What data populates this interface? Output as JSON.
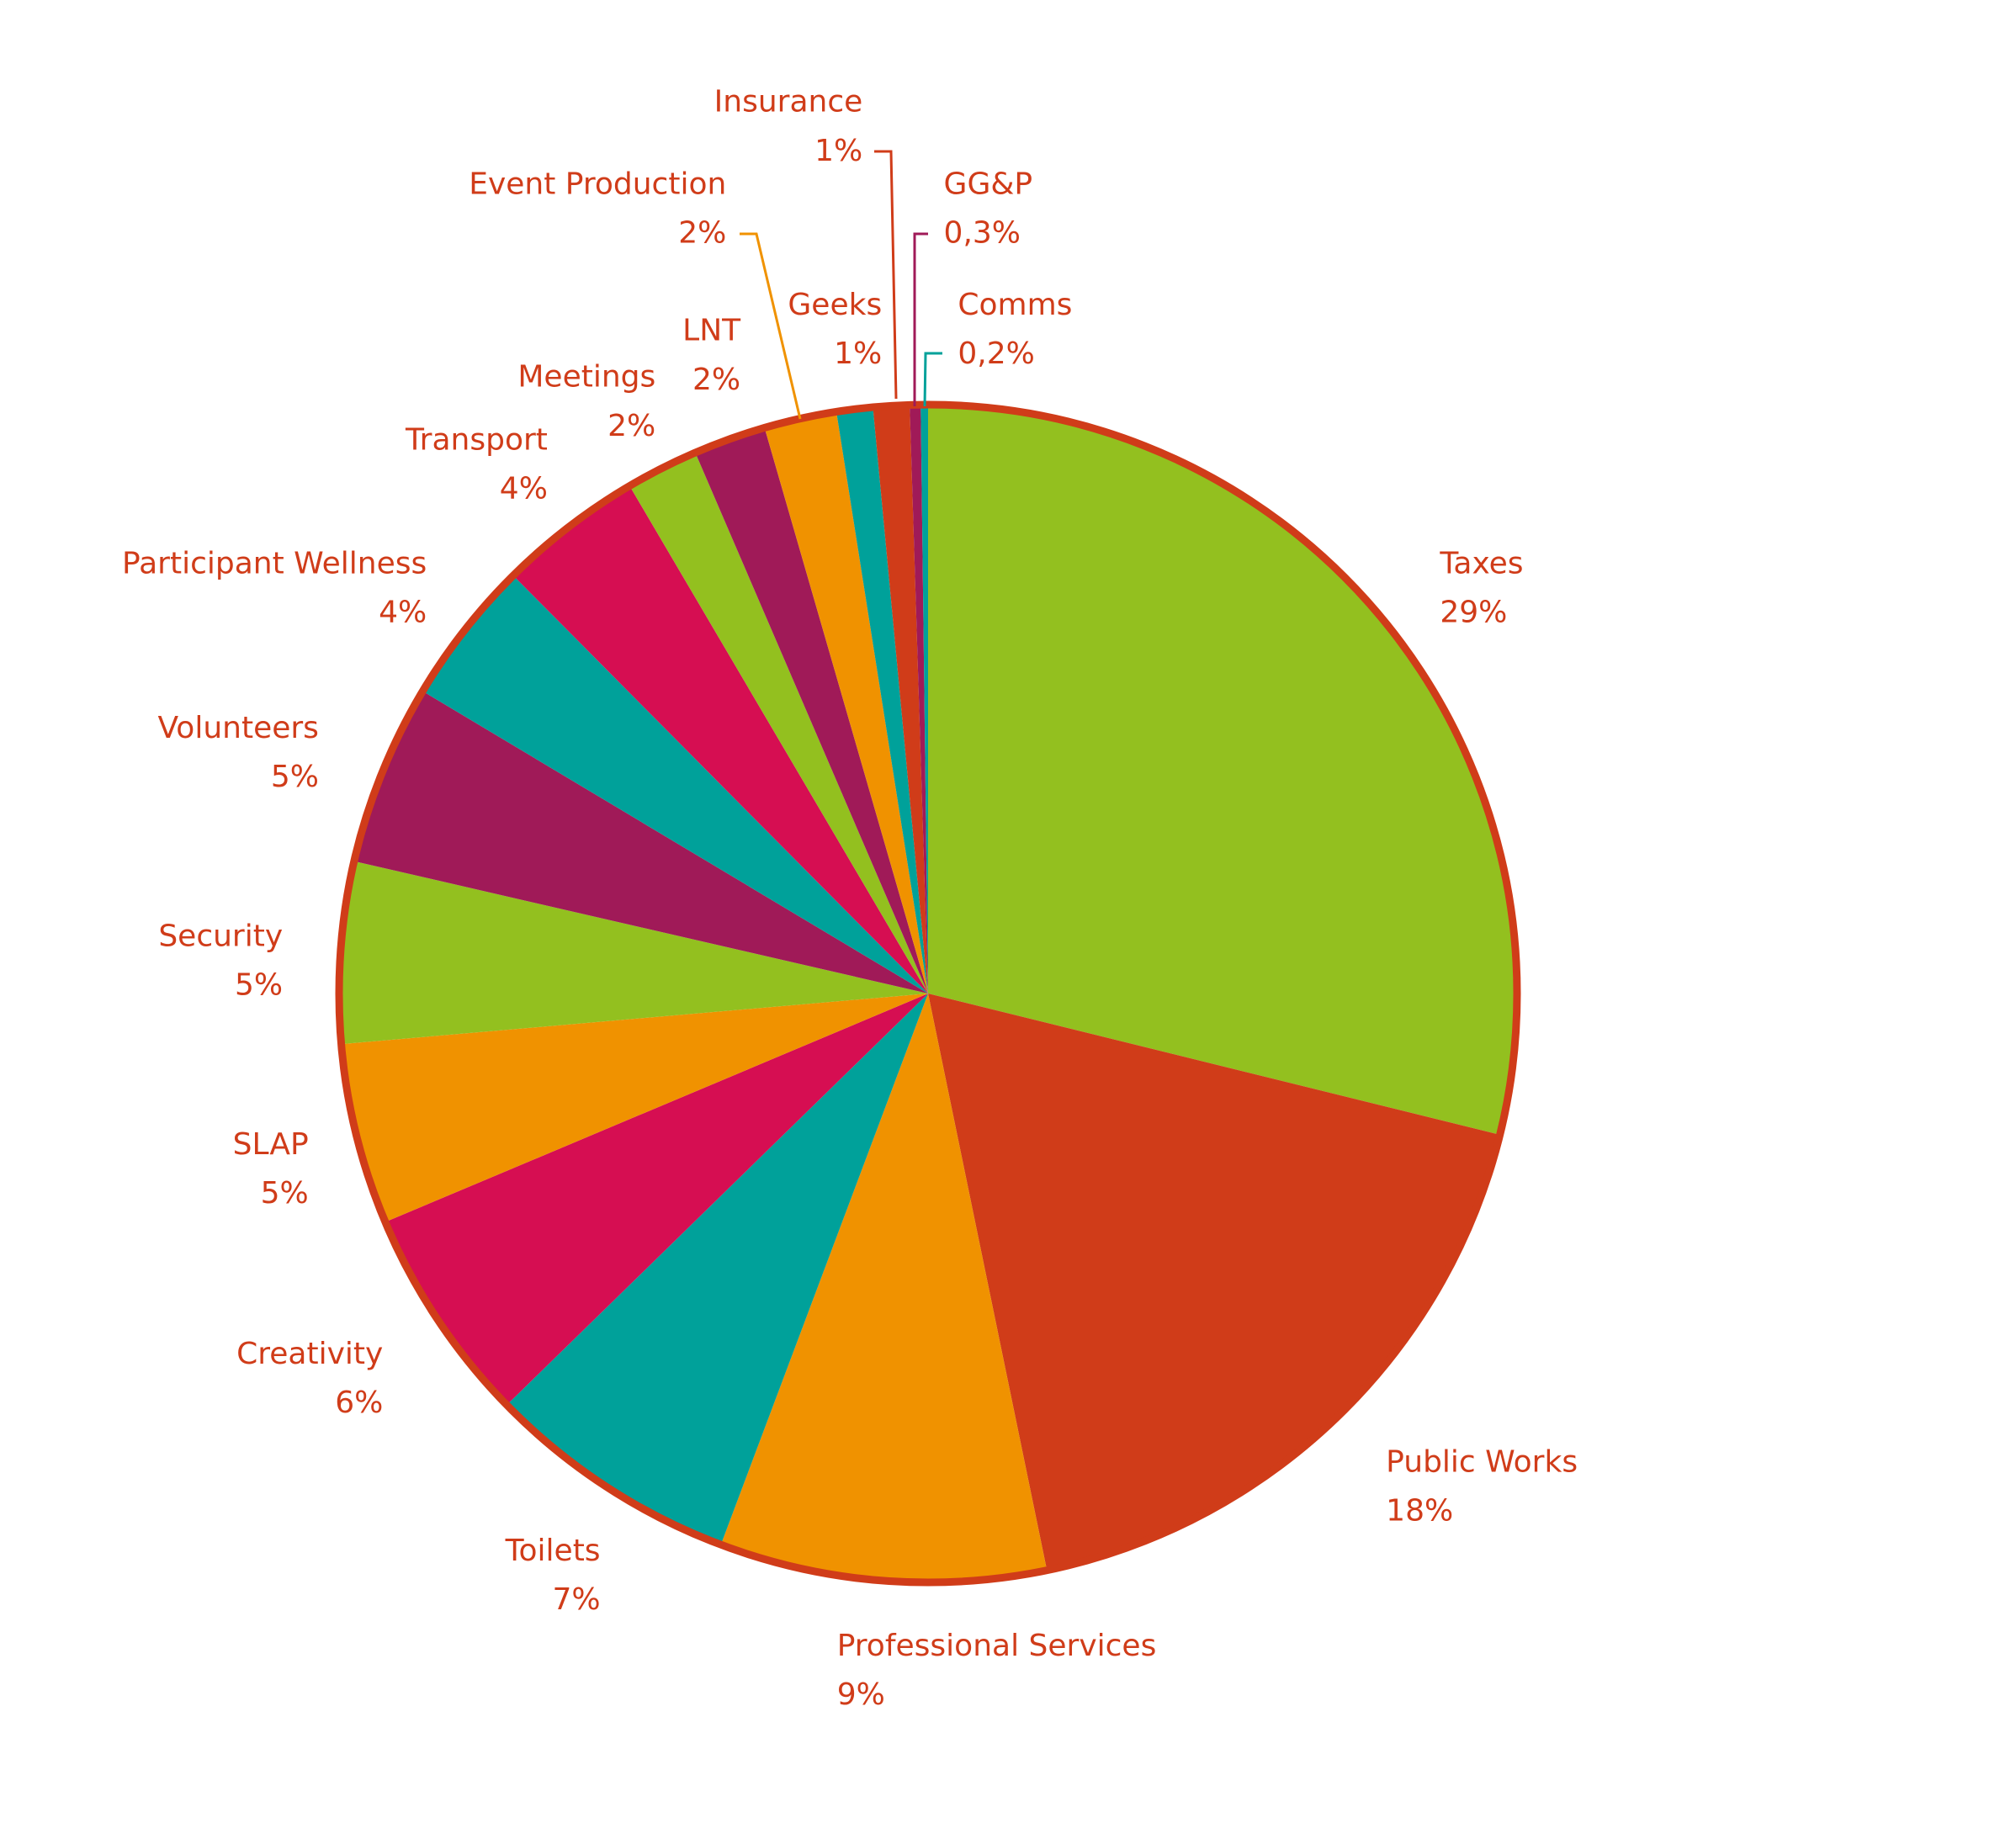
{
  "chart_data": {
    "type": "pie",
    "categories": [
      "Taxes",
      "Public Works",
      "Professional Services",
      "Toilets",
      "Creativity",
      "SLAP",
      "Security",
      "Volunteers",
      "Participant Wellness",
      "Transport",
      "Meetings",
      "LNT",
      "Event Production",
      "Geeks",
      "Insurance",
      "GG&P",
      "Comms"
    ],
    "values": [
      29,
      18,
      9,
      7,
      6,
      5,
      5,
      5,
      4,
      4,
      2,
      2,
      2,
      1,
      1,
      0.3,
      0.2
    ],
    "value_labels": [
      "29%",
      "18%",
      "9%",
      "7%",
      "6%",
      "5%",
      "5%",
      "5%",
      "4%",
      "4%",
      "2%",
      "2%",
      "2%",
      "1%",
      "1%",
      "0,3%",
      "0,2%"
    ],
    "colors": [
      "#93c01f",
      "#d03c19",
      "#f09200",
      "#00a19a",
      "#d60e52",
      "#f09200",
      "#93c01f",
      "#a01a58",
      "#00a19a",
      "#d60e52",
      "#93c01f",
      "#a01a58",
      "#f09200",
      "#00a19a",
      "#d03c19",
      "#a01a58",
      "#00a19a"
    ]
  }
}
